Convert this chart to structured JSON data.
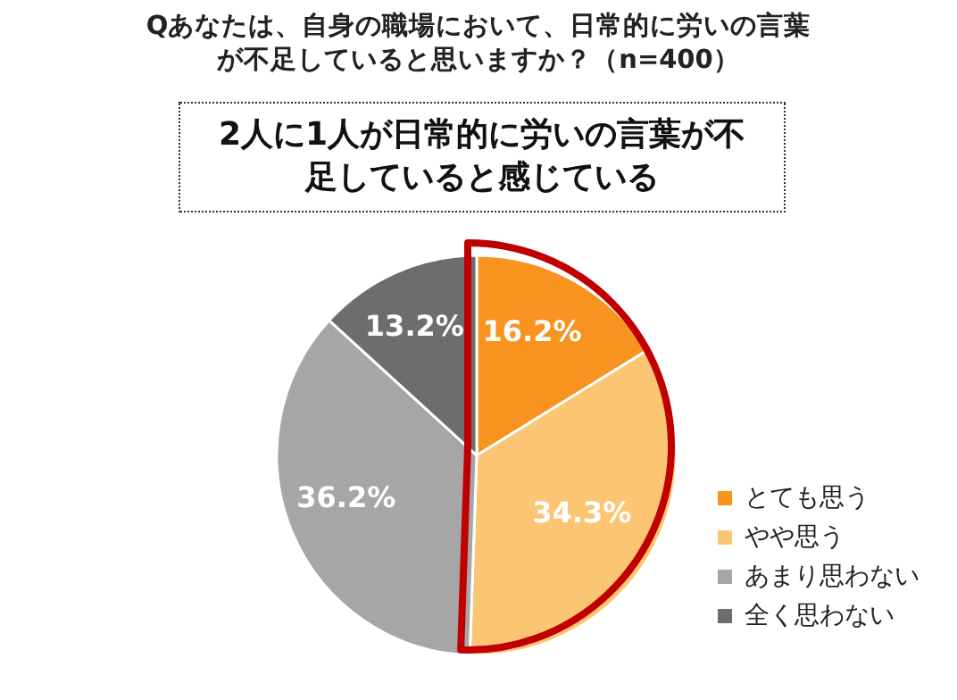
{
  "chart_data": {
    "type": "pie",
    "title": "Qあなたは、自身の職場において、日常的に労いの言葉が不足していると思いますか？（n=400）",
    "subtitle": "2人に1人が日常的に労いの言葉が不足していると感じている",
    "categories": [
      "とても思う",
      "やや思う",
      "あまり思わない",
      "全く思わない"
    ],
    "values": [
      16.2,
      34.3,
      36.2,
      13.2
    ],
    "value_labels": [
      "16.2%",
      "34.3%",
      "36.2%",
      "13.2%"
    ],
    "colors": [
      "#f7931e",
      "#fcc573",
      "#a6a6a6",
      "#6d6d6d"
    ],
    "legend": "bottom right"
  }
}
